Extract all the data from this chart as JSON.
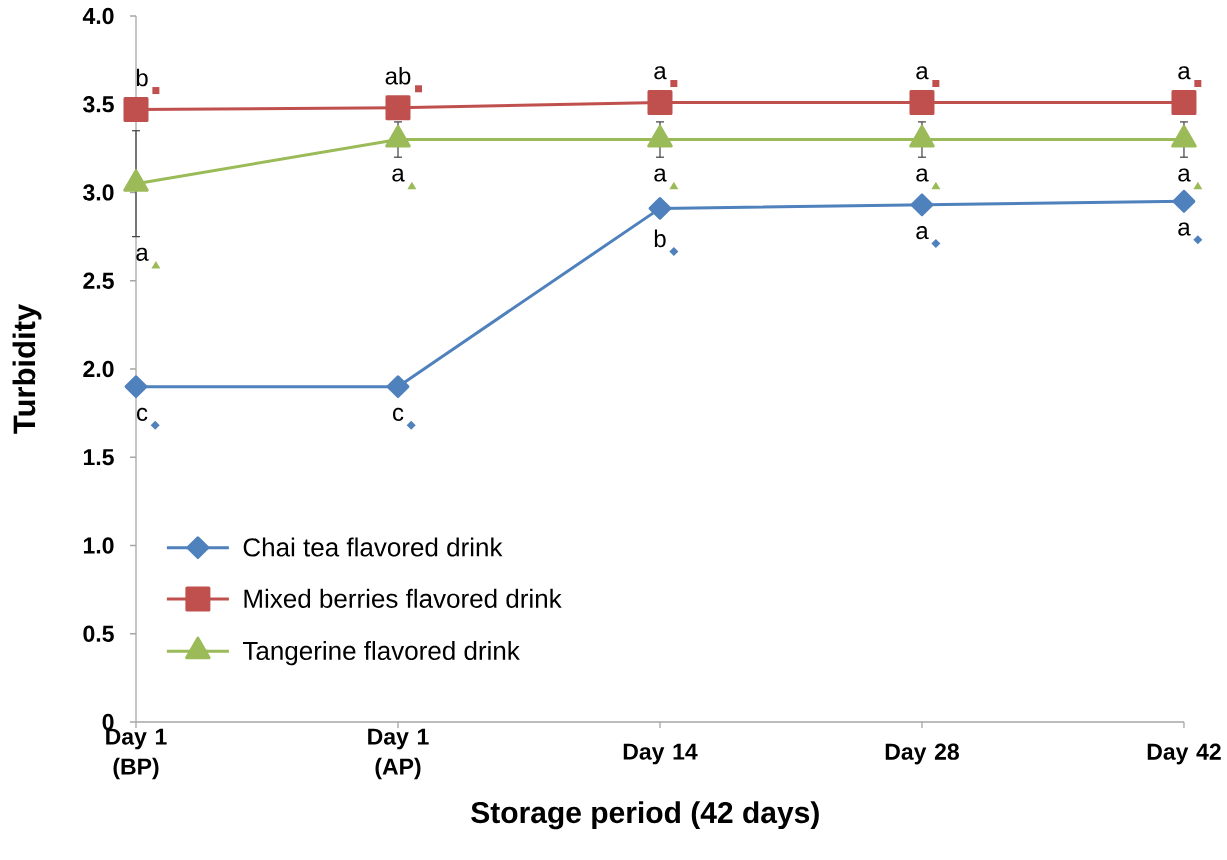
{
  "chart_data": {
    "type": "line",
    "xlabel": "Storage period (42 days)",
    "ylabel": "Turbidity",
    "categories": [
      "Day 1 (BP)",
      "Day 1 (AP)",
      "Day 14",
      "Day 28",
      "Day 42"
    ],
    "ylim": [
      0,
      4
    ],
    "yticks": [
      0,
      0.5,
      {
        "value": 1,
        "label": "1.0"
      },
      1.5,
      {
        "value": 2,
        "label": "2.0"
      },
      2.5,
      {
        "value": 3,
        "label": "3.0"
      },
      3.5,
      {
        "value": 4,
        "label": "4.0"
      }
    ],
    "grid": false,
    "legend": "bottom left",
    "line_style": "solid",
    "series": [
      {
        "name": "Chai tea flavored drink",
        "color": "#4f81bd",
        "marker": "diamond",
        "values": [
          1.9,
          1.9,
          2.91,
          2.93,
          2.95
        ],
        "value_labels": [
          "c",
          "c",
          "b",
          "a",
          "a"
        ]
      },
      {
        "name": "Mixed berries flavored drink",
        "color": "#c0504d",
        "marker": "square",
        "values": [
          3.47,
          3.48,
          3.51,
          3.51,
          3.51
        ],
        "value_labels": [
          "b",
          "ab",
          "a",
          "a",
          "a"
        ]
      },
      {
        "name": "Tangerine flavored drink",
        "color": "#9bbb59",
        "marker": "triangle",
        "values": [
          3.05,
          3.3,
          3.3,
          3.3,
          3.3
        ],
        "errors": [
          0.3,
          0.1,
          0.1,
          0.1,
          0.1
        ],
        "value_labels": [
          "a",
          "a",
          "a",
          "a",
          "a"
        ]
      }
    ]
  }
}
